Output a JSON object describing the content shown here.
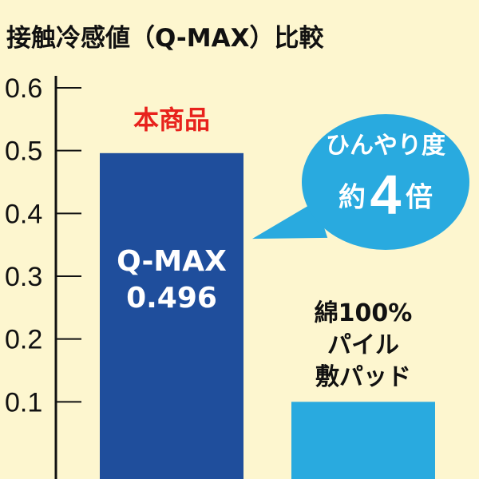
{
  "chart_data": {
    "type": "bar",
    "title": "接触冷感値（Q-MAX）比較",
    "categories": [
      "本商品",
      "綿100% パイル 敷パッド"
    ],
    "values": [
      0.496,
      0.1
    ],
    "ylim": [
      0,
      0.6
    ],
    "yticks": [
      "0.1",
      "0.2",
      "0.3",
      "0.4",
      "0.5",
      "0.6"
    ],
    "ytick_values": [
      0.1,
      0.2,
      0.3,
      0.4,
      0.5,
      0.6
    ],
    "grid": false,
    "colors": [
      "#1f4e9c",
      "#29aadf"
    ]
  },
  "labels": {
    "product": "本商品",
    "bar_metric": "Q-MAX",
    "bar_value": "0.496",
    "compare_line1": "綿100%",
    "compare_line2": "パイル",
    "compare_line3": "敷パッド"
  },
  "bubble": {
    "line1": "ひんやり度",
    "prefix": "約",
    "number": "4",
    "suffix": "倍",
    "color": "#29aadf"
  },
  "colors": {
    "background": "#fdf6cf",
    "accent_red": "#e8221c"
  }
}
